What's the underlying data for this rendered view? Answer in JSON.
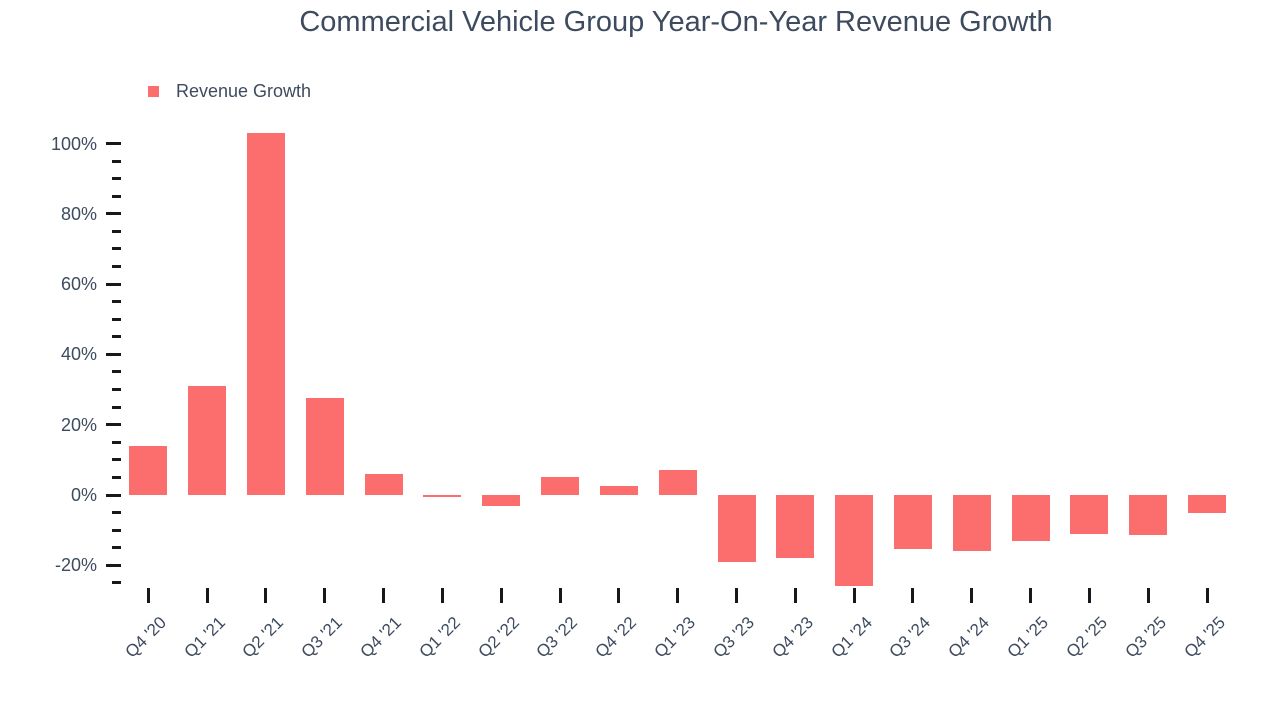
{
  "title": "Commercial Vehicle Group Year-On-Year Revenue Growth",
  "legend": {
    "label": "Revenue Growth"
  },
  "colors": {
    "bar": "#fc6d6d",
    "text": "#3e4b5f",
    "tick": "#15181d",
    "background": "#ffffff"
  },
  "chart_data": {
    "type": "bar",
    "title": "Commercial Vehicle Group Year-On-Year Revenue Growth",
    "series_name": "Revenue Growth",
    "categories": [
      "Q4 '20",
      "Q1 '21",
      "Q2 '21",
      "Q3 '21",
      "Q4 '21",
      "Q1 '22",
      "Q2 '22",
      "Q3 '22",
      "Q4 '22",
      "Q1 '23",
      "Q3 '23",
      "Q4 '23",
      "Q1 '24",
      "Q3 '24",
      "Q4 '24",
      "Q1 '25",
      "Q2 '25",
      "Q3 '25",
      "Q4 '25"
    ],
    "values": [
      14,
      31,
      103,
      27.5,
      6,
      -0.5,
      -3,
      5,
      2.5,
      7,
      -19,
      -18,
      -26,
      -15.5,
      -16,
      -13,
      -11,
      -11.5,
      -5
    ],
    "xlabel": "",
    "ylabel": "",
    "unit": "%",
    "ylim": [
      -27,
      105
    ],
    "grid": false,
    "legend_position": "top-left",
    "y_axis": {
      "major_ticks": [
        {
          "value": 100,
          "label": "100%"
        },
        {
          "value": 80,
          "label": "80%"
        },
        {
          "value": 60,
          "label": "60%"
        },
        {
          "value": 40,
          "label": "40%"
        },
        {
          "value": 20,
          "label": "20%"
        },
        {
          "value": 0,
          "label": "0%"
        },
        {
          "value": -20,
          "label": "-20%"
        }
      ],
      "minor_step": 5,
      "minor_min": -25,
      "minor_max": 95
    }
  }
}
